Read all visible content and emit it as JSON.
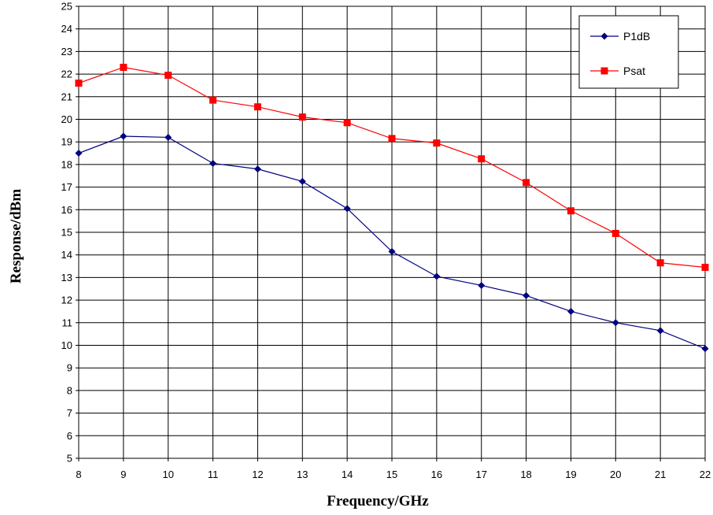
{
  "chart_data": {
    "type": "line",
    "title": "",
    "xlabel": "Frequency/GHz",
    "ylabel": "Response/dBm",
    "xlim": [
      8,
      22
    ],
    "ylim": [
      5,
      25
    ],
    "x_ticks": [
      8,
      9,
      10,
      11,
      12,
      13,
      14,
      15,
      16,
      17,
      18,
      19,
      20,
      21,
      22
    ],
    "y_ticks": [
      5,
      6,
      7,
      8,
      9,
      10,
      11,
      12,
      13,
      14,
      15,
      16,
      17,
      18,
      19,
      20,
      21,
      22,
      23,
      24,
      25
    ],
    "grid": true,
    "legend_position": "top-right",
    "x": [
      8,
      9,
      10,
      11,
      12,
      13,
      14,
      15,
      16,
      17,
      18,
      19,
      20,
      21,
      22
    ],
    "series": [
      {
        "name": "P1dB",
        "color": "#000080",
        "marker": "diamond",
        "values": [
          18.5,
          19.25,
          19.2,
          18.05,
          17.8,
          17.25,
          16.05,
          14.15,
          13.05,
          12.65,
          12.2,
          11.5,
          11.0,
          10.65,
          9.85
        ]
      },
      {
        "name": "Psat",
        "color": "#ff0000",
        "marker": "square",
        "values": [
          21.6,
          22.3,
          21.95,
          20.85,
          20.55,
          20.1,
          19.85,
          19.15,
          18.95,
          18.25,
          17.2,
          15.95,
          14.95,
          13.65,
          13.45
        ]
      }
    ]
  }
}
